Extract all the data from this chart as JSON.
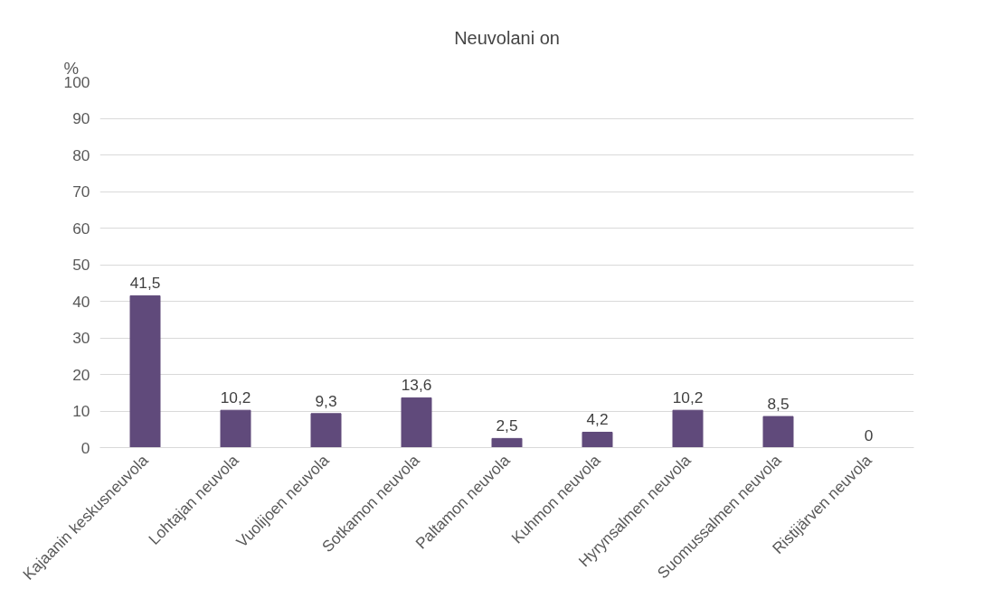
{
  "chart_data": {
    "type": "bar",
    "title": "Neuvolani on",
    "ylabel": "%",
    "categories": [
      "Kajaanin keskusneuvola",
      "Lohtajan neuvola",
      "Vuolijoen neuvola",
      "Sotkamon neuvola",
      "Paltamon neuvola",
      "Kuhmon neuvola",
      "Hyrynsalmen neuvola",
      "Suomussalmen neuvola",
      "Ristijärven neuvola"
    ],
    "values": [
      41.5,
      10.2,
      9.3,
      13.6,
      2.5,
      4.2,
      10.2,
      8.5,
      0
    ],
    "value_labels": [
      "41,5",
      "10,2",
      "9,3",
      "13,6",
      "2,5",
      "4,2",
      "10,2",
      "8,5",
      "0"
    ],
    "color": "#604a7b",
    "ylim": [
      0,
      100
    ],
    "yticks": [
      0,
      10,
      20,
      30,
      40,
      50,
      60,
      70,
      80,
      90,
      100
    ],
    "grid": "y"
  }
}
